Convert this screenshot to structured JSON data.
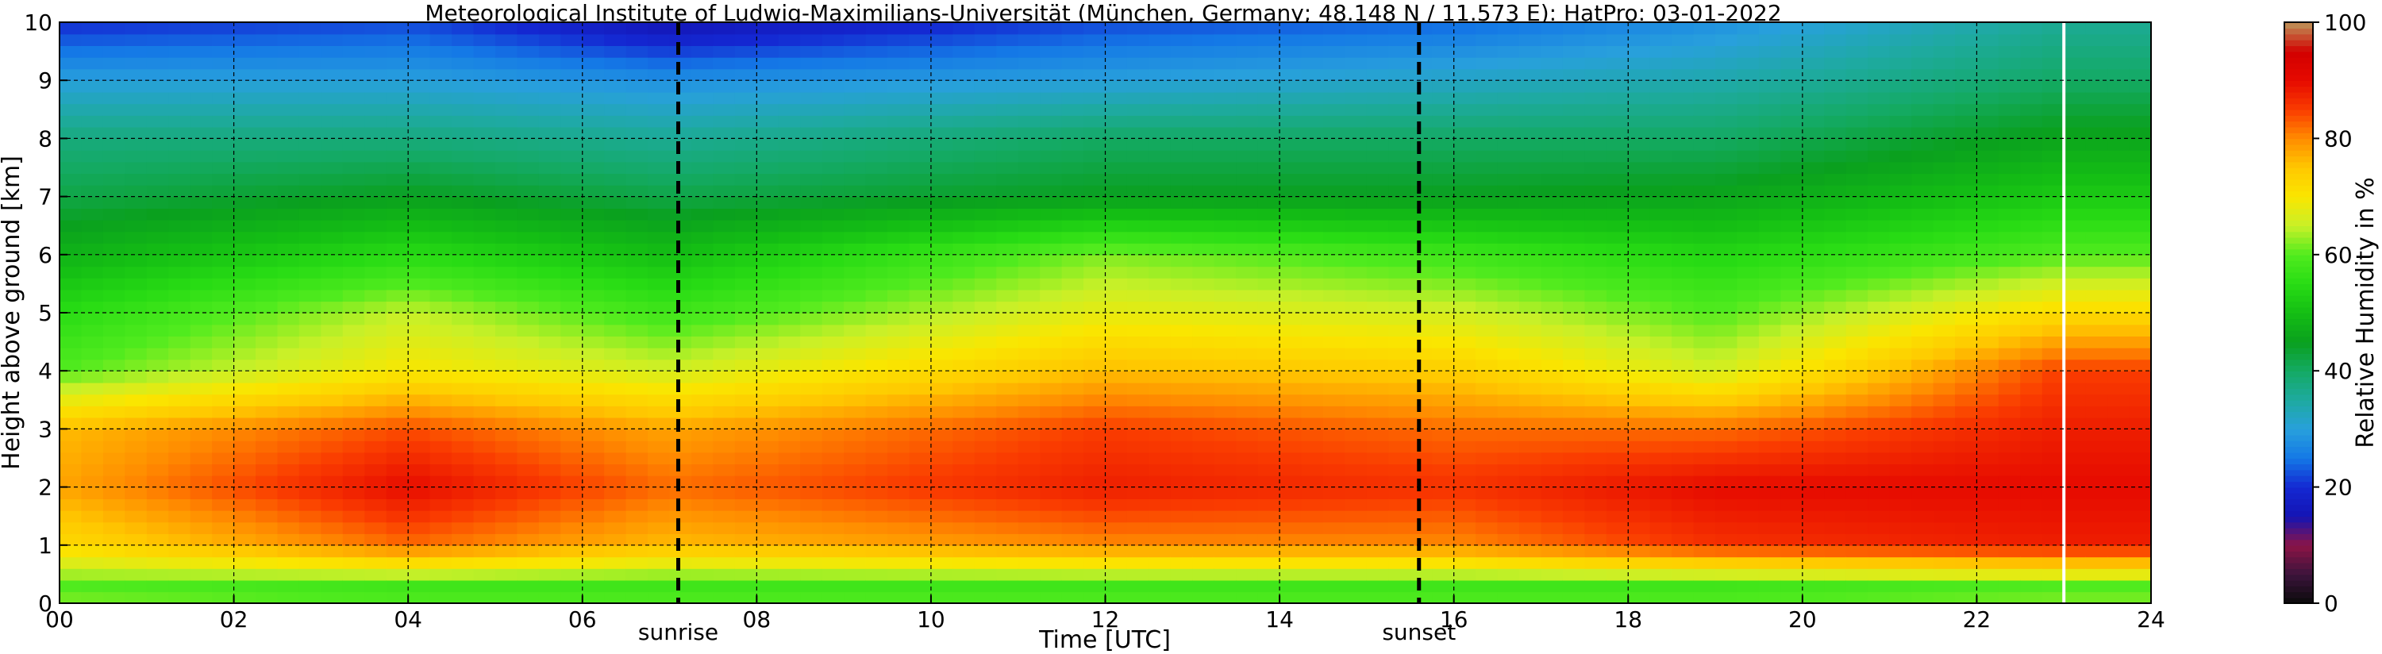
{
  "chart_data": {
    "type": "heatmap",
    "title": "Meteorological Institute of Ludwig-Maximilians-Universität (München, Germany; 48.148 N / 11.573 E):    HatPro: 03-01-2022",
    "xlabel": "Time [UTC]",
    "ylabel": "Height above ground [km]",
    "xlim": [
      0,
      24
    ],
    "ylim": [
      0,
      10
    ],
    "x_ticks": [
      "00",
      "02",
      "04",
      "06",
      "08",
      "10",
      "12",
      "14",
      "16",
      "18",
      "20",
      "22",
      "24"
    ],
    "y_ticks": [
      "0",
      "1",
      "2",
      "3",
      "4",
      "5",
      "6",
      "7",
      "8",
      "9",
      "10"
    ],
    "grid": true,
    "markers": [
      {
        "label": "sunrise",
        "x": 7.1
      },
      {
        "label": "sunset",
        "x": 15.6
      }
    ],
    "data_gap": {
      "x": 23.0
    },
    "colorbar": {
      "label": "Relative Humidity in %",
      "range": [
        0,
        100
      ],
      "ticks": [
        "0",
        "20",
        "40",
        "60",
        "80",
        "100"
      ]
    },
    "humidity_by_height": {
      "heights_km": [
        0,
        0.3,
        1,
        2,
        3,
        4,
        5,
        6,
        7,
        8,
        9,
        10
      ],
      "hour_00": [
        62,
        60,
        72,
        78,
        76,
        60,
        55,
        48,
        42,
        38,
        30,
        20
      ],
      "hour_04": [
        60,
        58,
        82,
        90,
        84,
        70,
        65,
        55,
        45,
        38,
        30,
        22
      ],
      "hour_07": [
        60,
        58,
        76,
        82,
        78,
        66,
        58,
        50,
        42,
        36,
        28,
        15
      ],
      "hour_12": [
        60,
        58,
        80,
        88,
        85,
        76,
        68,
        62,
        45,
        40,
        30,
        22
      ],
      "hour_16": [
        60,
        58,
        80,
        86,
        82,
        74,
        66,
        58,
        45,
        40,
        32,
        24
      ],
      "hour_19": [
        60,
        58,
        86,
        90,
        82,
        66,
        60,
        54,
        46,
        40,
        34,
        28
      ],
      "hour_23": [
        62,
        60,
        88,
        90,
        88,
        85,
        72,
        60,
        52,
        46,
        40,
        36
      ]
    }
  }
}
